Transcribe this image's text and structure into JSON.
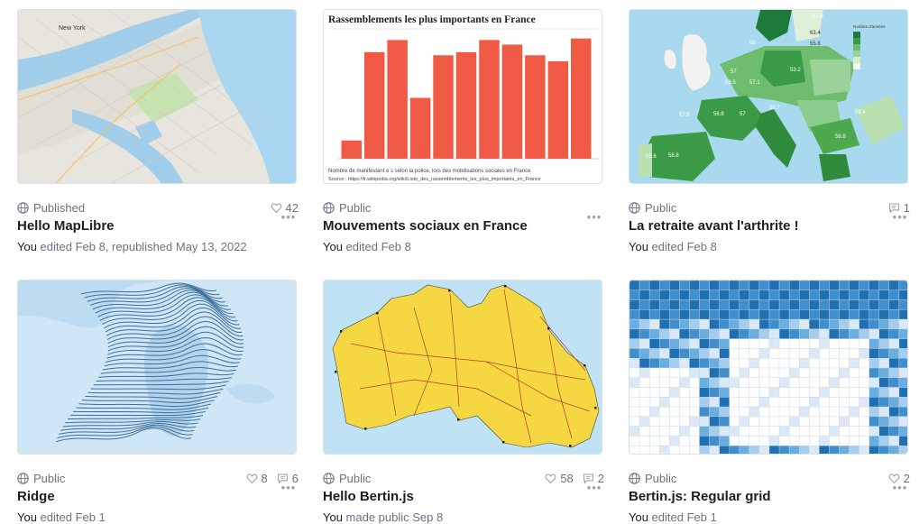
{
  "cards": [
    {
      "title": "Hello MapLibre",
      "visibility": "Published",
      "likes": "42",
      "comments": "",
      "you": "You",
      "action": " edited Feb 8, republished May 13, 2022"
    },
    {
      "title": "Mouvements sociaux en France",
      "visibility": "Public",
      "likes": "",
      "comments": "",
      "you": "You",
      "action": " edited Feb 8",
      "thumb_title": "Rassemblements les plus importants en France",
      "thumb_caption1": "Nombre de manifestant e s selon la police, lors des mobilisations sociales en France",
      "thumb_caption2": "Source : https://fr.wikipedia.org/wiki/Liste_des_rassemblements_les_plus_importants_en_France"
    },
    {
      "title": "La retraite avant l'arthrite !",
      "visibility": "Public",
      "likes": "",
      "comments": "1",
      "you": "You",
      "action": " edited Feb 8",
      "legend_title": "Nombre d'années"
    },
    {
      "title": "Ridge",
      "visibility": "Public",
      "likes": "8",
      "comments": "6",
      "you": "You",
      "action": " edited Feb 1"
    },
    {
      "title": "Hello Bertin.js",
      "visibility": "Public",
      "likes": "58",
      "comments": "2",
      "you": "You",
      "action": " made public Sep 8"
    },
    {
      "title": "Bertin.js: Regular grid",
      "visibility": "Public",
      "likes": "2",
      "comments": "",
      "you": "You",
      "action": " edited Feb 1"
    }
  ],
  "map_labels": [
    "New York",
    "57.6",
    "63.4",
    "55.8",
    "58",
    "57",
    "53.2",
    "57.1",
    "59.5",
    "58.7",
    "56.8",
    "57",
    "57.5",
    "59.4",
    "58.8",
    "59.6",
    "58.8"
  ],
  "bar_values": [
    12,
    70,
    78,
    40,
    68,
    70,
    78,
    75,
    68,
    64,
    79
  ],
  "colors": {
    "bar": "#f05a44",
    "accent": "#3a8c3a",
    "water": "#a8d4ef"
  }
}
